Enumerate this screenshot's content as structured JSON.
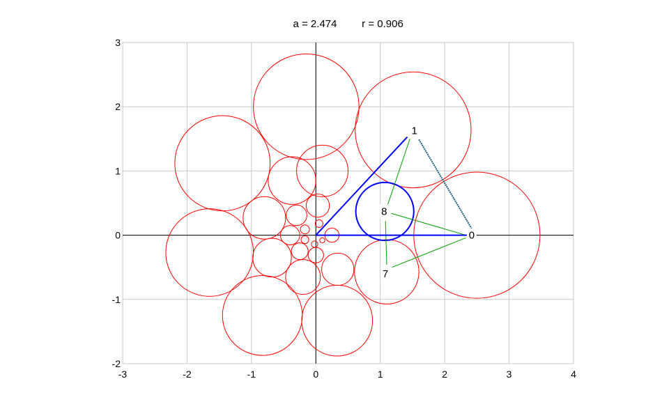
{
  "chart_data": {
    "type": "scatter",
    "title_a": "a = 2.474",
    "title_r": "r = 0.906",
    "xlim": [
      -3,
      4
    ],
    "ylim": [
      -2,
      3
    ],
    "xticks": [
      -3,
      -2,
      -1,
      0,
      1,
      2,
      3,
      4
    ],
    "yticks": [
      -2,
      -1,
      0,
      1,
      2,
      3
    ],
    "grid": true,
    "colors": {
      "circles": "#ff0000",
      "triangle": "#0000ff",
      "connectors": "#00a000",
      "grid": "#c8c8c8",
      "axes": "#000000"
    },
    "circles": [
      {
        "cx": 2.5,
        "cy": 0,
        "r": 0.98
      },
      {
        "cx": 1.51,
        "cy": 1.64,
        "r": 0.9
      },
      {
        "cx": -0.15,
        "cy": 2.0,
        "r": 0.82
      },
      {
        "cx": -1.45,
        "cy": 1.12,
        "r": 0.74
      },
      {
        "cx": -1.65,
        "cy": -0.27,
        "r": 0.68
      },
      {
        "cx": -0.83,
        "cy": -1.25,
        "r": 0.62
      },
      {
        "cx": 0.33,
        "cy": -1.33,
        "r": 0.55
      },
      {
        "cx": 1.1,
        "cy": -0.57,
        "r": 0.5
      },
      {
        "cx": 0.1,
        "cy": 1.0,
        "r": 0.4
      },
      {
        "cx": -0.37,
        "cy": 0.85,
        "r": 0.37
      },
      {
        "cx": -0.8,
        "cy": 0.27,
        "r": 0.33
      },
      {
        "cx": -0.68,
        "cy": -0.35,
        "r": 0.3
      },
      {
        "cx": -0.2,
        "cy": -0.65,
        "r": 0.27
      },
      {
        "cx": 0.34,
        "cy": -0.53,
        "r": 0.25
      },
      {
        "cx": 0.03,
        "cy": 0.46,
        "r": 0.18
      },
      {
        "cx": -0.3,
        "cy": 0.31,
        "r": 0.16
      },
      {
        "cx": -0.4,
        "cy": 0.0,
        "r": 0.15
      },
      {
        "cx": -0.25,
        "cy": -0.25,
        "r": 0.13
      },
      {
        "cx": 0.0,
        "cy": -0.31,
        "r": 0.12
      },
      {
        "cx": 0.25,
        "cy": 0.0,
        "r": 0.11
      },
      {
        "cx": -0.17,
        "cy": 0.09,
        "r": 0.07
      },
      {
        "cx": -0.17,
        "cy": -0.07,
        "r": 0.06
      },
      {
        "cx": -0.02,
        "cy": -0.14,
        "r": 0.05
      },
      {
        "cx": 0.1,
        "cy": -0.08,
        "r": 0.04
      },
      {
        "cx": 0.05,
        "cy": 0.18,
        "r": 0.06
      }
    ],
    "inscribed_circle": {
      "cx": 1.07,
      "cy": 0.37,
      "r": 0.45
    },
    "triangle": [
      [
        0,
        0
      ],
      [
        2.42,
        0
      ],
      [
        1.42,
        1.53
      ]
    ],
    "points": [
      {
        "label": "0",
        "x": 2.42,
        "y": 0
      },
      {
        "label": "1",
        "x": 1.53,
        "y": 1.63
      },
      {
        "label": "8",
        "x": 1.06,
        "y": 0.37
      },
      {
        "label": "7",
        "x": 1.08,
        "y": -0.6
      }
    ],
    "connectors": [
      [
        [
          1.08,
          0.37
        ],
        [
          1.46,
          1.5
        ]
      ],
      [
        [
          1.17,
          0.34
        ],
        [
          2.33,
          0.0
        ]
      ],
      [
        [
          1.18,
          -0.5
        ],
        [
          2.33,
          -0.04
        ]
      ],
      [
        [
          1.08,
          0.22
        ],
        [
          1.1,
          -0.46
        ]
      ]
    ]
  }
}
